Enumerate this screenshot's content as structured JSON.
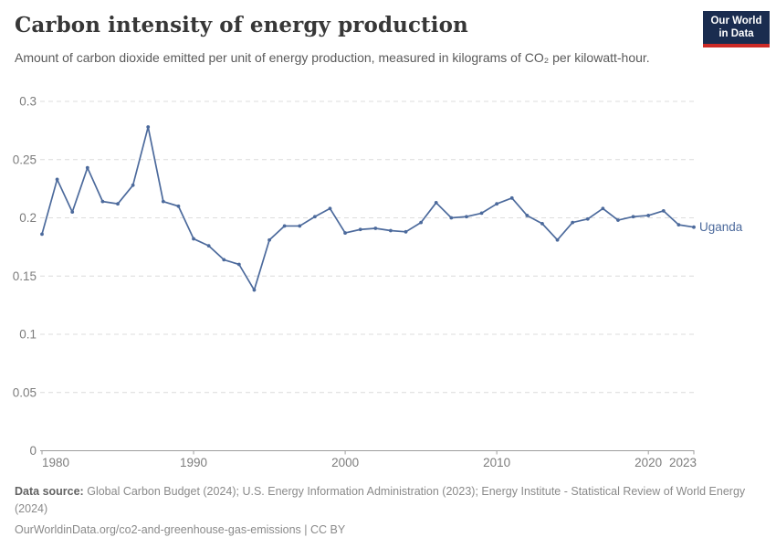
{
  "header": {
    "title": "Carbon intensity of energy production",
    "subtitle": "Amount of carbon dioxide emitted per unit of energy production, measured in kilograms of CO₂ per kilowatt-hour."
  },
  "logo": {
    "line1": "Our World",
    "line2": "in Data",
    "bg_color": "#1a2c4f",
    "stripe_color": "#cc2a26"
  },
  "footer": {
    "source_label": "Data source:",
    "source_text": "Global Carbon Budget (2024); U.S. Energy Information Administration (2023); Energy Institute - Statistical Review of World Energy (2024)",
    "license_line": "OurWorldinData.org/co2-and-greenhouse-gas-emissions | CC BY"
  },
  "chart_data": {
    "type": "line",
    "title": "Carbon intensity of energy production",
    "x": [
      1980,
      1981,
      1982,
      1983,
      1984,
      1985,
      1986,
      1987,
      1988,
      1989,
      1990,
      1991,
      1992,
      1993,
      1994,
      1995,
      1996,
      1997,
      1998,
      1999,
      2000,
      2001,
      2002,
      2003,
      2004,
      2005,
      2006,
      2007,
      2008,
      2009,
      2010,
      2011,
      2012,
      2013,
      2014,
      2015,
      2016,
      2017,
      2018,
      2019,
      2020,
      2021,
      2022,
      2023
    ],
    "series": [
      {
        "name": "Uganda",
        "color": "#4c6a9c",
        "values": [
          0.186,
          0.233,
          0.205,
          0.243,
          0.214,
          0.212,
          0.228,
          0.278,
          0.214,
          0.21,
          0.182,
          0.176,
          0.164,
          0.16,
          0.138,
          0.181,
          0.193,
          0.193,
          0.201,
          0.208,
          0.187,
          0.19,
          0.191,
          0.189,
          0.188,
          0.196,
          0.213,
          0.2,
          0.201,
          0.204,
          0.212,
          0.217,
          0.202,
          0.195,
          0.181,
          0.196,
          0.199,
          0.208,
          0.198,
          0.201,
          0.202,
          0.206,
          0.194,
          0.192
        ]
      }
    ],
    "xlim": [
      1980,
      2023
    ],
    "ylim": [
      0,
      0.3
    ],
    "yticks": [
      0,
      0.05,
      0.1,
      0.15,
      0.2,
      0.25,
      0.3
    ],
    "xticks": [
      1980,
      1990,
      2000,
      2010,
      2020,
      2023
    ],
    "grid": "dashed-horizontal",
    "legend": "line-end-label",
    "colors": {
      "grid": "#dcdcdc",
      "axis": "#9e9e9e",
      "tick_label": "#7d7d7d"
    }
  }
}
